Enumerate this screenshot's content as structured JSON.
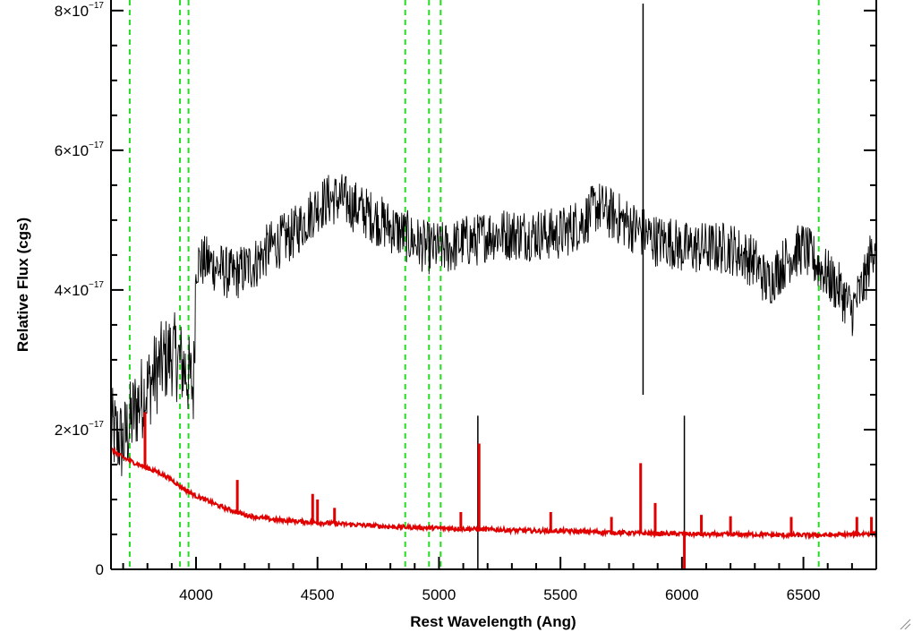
{
  "chart_data": {
    "type": "line",
    "title": "",
    "xlabel": "Rest Wavelength (Ang)",
    "ylabel": "Relative Flux (cgs)",
    "xlim": [
      3650,
      6800
    ],
    "ylim": [
      0,
      8.1e-17
    ],
    "x_ticks": [
      {
        "value": 4000,
        "label": "4000"
      },
      {
        "value": 4500,
        "label": "4500"
      },
      {
        "value": 5000,
        "label": "5000"
      },
      {
        "value": 5500,
        "label": "5500"
      },
      {
        "value": 6000,
        "label": "6000"
      },
      {
        "value": 6500,
        "label": "6500"
      }
    ],
    "y_ticks": [
      {
        "value": 0,
        "mantissa": "0",
        "exponent": ""
      },
      {
        "value": 2e-17,
        "mantissa": "2×10",
        "exponent": "−17"
      },
      {
        "value": 4e-17,
        "mantissa": "4×10",
        "exponent": "−17"
      },
      {
        "value": 6e-17,
        "mantissa": "6×10",
        "exponent": "−17"
      },
      {
        "value": 8e-17,
        "mantissa": "8×10",
        "exponent": "−17"
      }
    ],
    "reference_lines_x": [
      3727,
      3934,
      3969,
      4861,
      4959,
      5007,
      6563
    ],
    "grid": false,
    "series": [
      {
        "color": "#000000",
        "x": [
          3650,
          3700,
          3750,
          3800,
          3850,
          3900,
          3950,
          3990,
          4000,
          4050,
          4100,
          4150,
          4200,
          4250,
          4300,
          4350,
          4400,
          4450,
          4500,
          4550,
          4600,
          4650,
          4700,
          4750,
          4800,
          4850,
          4900,
          4950,
          5000,
          5050,
          5100,
          5150,
          5200,
          5250,
          5300,
          5350,
          5400,
          5450,
          5500,
          5550,
          5600,
          5650,
          5700,
          5750,
          5800,
          5850,
          5900,
          5950,
          6000,
          6050,
          6100,
          6150,
          6200,
          6250,
          6300,
          6350,
          6400,
          6450,
          6500,
          6550,
          6600,
          6650,
          6700,
          6750,
          6800
        ],
        "values": [
          2e-17,
          1.8e-17,
          2.3e-17,
          2.6e-17,
          2.9e-17,
          3.1e-17,
          2.9e-17,
          2.6e-17,
          4.4e-17,
          4.4e-17,
          4.3e-17,
          4.2e-17,
          4.3e-17,
          4.4e-17,
          4.6e-17,
          4.7e-17,
          4.8e-17,
          5e-17,
          5.2e-17,
          5.3e-17,
          5.3e-17,
          5.2e-17,
          5.1e-17,
          5e-17,
          4.9e-17,
          4.8e-17,
          4.7e-17,
          4.6e-17,
          4.6e-17,
          4.6e-17,
          4.7e-17,
          4.7e-17,
          4.8e-17,
          4.8e-17,
          4.8e-17,
          4.8e-17,
          4.8e-17,
          4.8e-17,
          4.8e-17,
          4.9e-17,
          5e-17,
          5.2e-17,
          5.1e-17,
          5e-17,
          4.9e-17,
          4.8e-17,
          4.7e-17,
          4.7e-17,
          4.6e-17,
          4.6e-17,
          4.6e-17,
          4.6e-17,
          4.6e-17,
          4.5e-17,
          4.4e-17,
          4.1e-17,
          4.3e-17,
          4.5e-17,
          4.6e-17,
          4.4e-17,
          4.2e-17,
          4e-17,
          3.7e-17,
          4.1e-17,
          4.8e-17
        ]
      },
      {
        "color": "#e00000",
        "x": [
          3650,
          3700,
          3750,
          3800,
          3850,
          3900,
          3950,
          4000,
          4050,
          4100,
          4150,
          4200,
          4300,
          4400,
          4500,
          4600,
          4700,
          4800,
          4900,
          5000,
          5100,
          5200,
          5300,
          5400,
          5500,
          5600,
          5700,
          5800,
          5900,
          6000,
          6100,
          6200,
          6300,
          6400,
          6500,
          6600,
          6700,
          6800
        ],
        "values": [
          1.72e-17,
          1.6e-17,
          1.52e-17,
          1.45e-17,
          1.38e-17,
          1.28e-17,
          1.15e-17,
          1.05e-17,
          9.8e-18,
          9e-18,
          8.4e-18,
          7.8e-18,
          7.2e-18,
          6.9e-18,
          6.7e-18,
          6.5e-18,
          6.3e-18,
          6.1e-18,
          6e-18,
          5.9e-18,
          5.8e-18,
          5.7e-18,
          5.6e-18,
          5.5e-18,
          5.5e-18,
          5.4e-18,
          5.3e-18,
          5.2e-18,
          5.1e-18,
          5.1e-18,
          5e-18,
          5e-18,
          5e-18,
          4.9e-18,
          4.9e-18,
          4.9e-18,
          5e-18,
          5.2e-18
        ]
      }
    ],
    "annotations": {
      "sky_line_residuals_black": [
        {
          "x": 5160,
          "y_min": 0,
          "y_max": 2.2e-17
        },
        {
          "x": 5840,
          "y_min": 2.5e-17,
          "y_max": 8.1e-17
        },
        {
          "x": 6010,
          "y_min": 0,
          "y_max": 2.2e-17
        }
      ],
      "red_spikes": [
        {
          "x": 3790,
          "peak": 2.25e-17
        },
        {
          "x": 4170,
          "peak": 1.28e-17
        },
        {
          "x": 4480,
          "peak": 1.08e-17
        },
        {
          "x": 4500,
          "peak": 1e-17
        },
        {
          "x": 4570,
          "peak": 8.8e-18
        },
        {
          "x": 5090,
          "peak": 8.2e-18
        },
        {
          "x": 5165,
          "peak": 1.8e-17
        },
        {
          "x": 5460,
          "peak": 8.2e-18
        },
        {
          "x": 5710,
          "peak": 7.5e-18
        },
        {
          "x": 5830,
          "peak": 1.52e-17
        },
        {
          "x": 5890,
          "peak": 9.5e-18
        },
        {
          "x": 6080,
          "peak": 7.8e-18
        },
        {
          "x": 6200,
          "peak": 7.6e-18
        },
        {
          "x": 6450,
          "peak": 7.5e-18
        },
        {
          "x": 6720,
          "peak": 7.5e-18
        },
        {
          "x": 6780,
          "peak": 7.5e-18
        }
      ],
      "red_dip": {
        "x": 6010,
        "y": 0
      }
    }
  }
}
